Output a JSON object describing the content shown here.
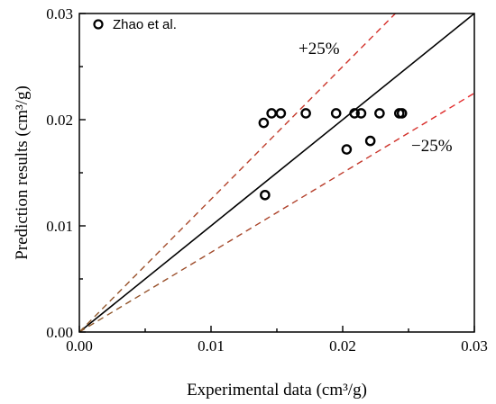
{
  "chart_data": {
    "type": "scatter",
    "title": "",
    "xlabel": "Experimental data (cm³/g)",
    "ylabel": "Prediction results (cm³/g)",
    "xlim": [
      0,
      0.03
    ],
    "ylim": [
      0,
      0.03
    ],
    "x_ticks": [
      "0.00",
      "0.01",
      "0.02",
      "0.03"
    ],
    "y_ticks": [
      "0.00",
      "0.01",
      "0.02",
      "0.03"
    ],
    "grid": false,
    "legend_position": "top-left",
    "series": [
      {
        "name": "Zhao et al.",
        "marker": "open-circle",
        "color": "#000000",
        "points": [
          [
            0.014,
            0.0197
          ],
          [
            0.0146,
            0.0206
          ],
          [
            0.0153,
            0.0206
          ],
          [
            0.0172,
            0.0206
          ],
          [
            0.0195,
            0.0206
          ],
          [
            0.0209,
            0.0206
          ],
          [
            0.0214,
            0.0206
          ],
          [
            0.0228,
            0.0206
          ],
          [
            0.0243,
            0.0206
          ],
          [
            0.0245,
            0.0206
          ],
          [
            0.0141,
            0.0129
          ],
          [
            0.0203,
            0.0172
          ],
          [
            0.0221,
            0.018
          ]
        ]
      }
    ],
    "reference_lines": [
      {
        "slope": 1.0,
        "style": "solid",
        "color": "#000000"
      },
      {
        "slope": 1.25,
        "style": "dashed",
        "color": "#e8262a",
        "label": "+25%"
      },
      {
        "slope": 0.75,
        "style": "dashed",
        "color": "#e8262a",
        "label": "−25%"
      }
    ]
  }
}
